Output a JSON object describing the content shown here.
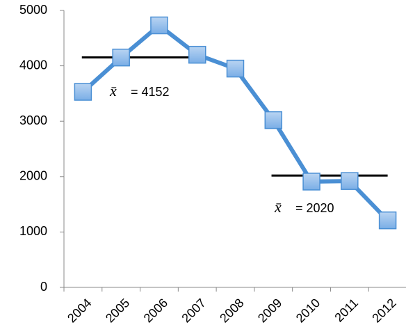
{
  "chart_data": {
    "type": "line",
    "categories": [
      "2004",
      "2005",
      "2006",
      "2007",
      "2008",
      "2009",
      "2010",
      "2011",
      "2012"
    ],
    "series": [
      {
        "color": "#4a8fd4",
        "values": [
          3530,
          4150,
          4730,
          4200,
          3950,
          3020,
          1910,
          1920,
          1210
        ]
      }
    ],
    "ylim": [
      0,
      5000
    ],
    "yticks": [
      0,
      1000,
      2000,
      3000,
      4000,
      5000
    ],
    "annotations": [
      {
        "symbol": "x̄",
        "value": 4152,
        "label": "= 4152"
      },
      {
        "symbol": "x̄",
        "value": 2020,
        "label": "= 2020"
      }
    ]
  }
}
